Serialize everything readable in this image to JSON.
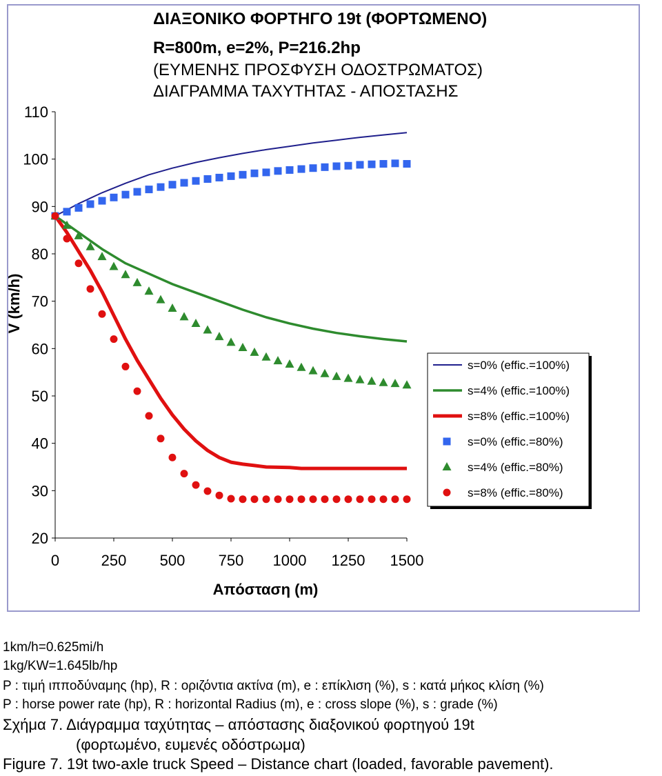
{
  "chart_data": {
    "type": "line",
    "title_lines": [
      "ΔΙΑΞΟΝΙΚΟ ΦΟΡΤΗΓΟ 19t (ΦΟΡΤΩΜΕΝΟ)",
      "R=800m, e=2%, P=216.2hp",
      "(ΕΥΜΕΝΗΣ ΠΡΟΣΦΥΣΗ ΟΔΟΣΤΡΩΜΑΤΟΣ)",
      "ΔΙΑΓΡΑΜΜΑ ΤΑΧΥΤΗΤΑΣ - ΑΠΟΣΤΑΣΗΣ"
    ],
    "xlabel": "Απόσταση (m)",
    "ylabel": "V (km/h)",
    "xlim": [
      0,
      1500
    ],
    "ylim": [
      20,
      110
    ],
    "xticks": [
      "0",
      "250",
      "500",
      "750",
      "1000",
      "1250",
      "1500"
    ],
    "yticks": [
      "20",
      "30",
      "40",
      "50",
      "60",
      "70",
      "80",
      "90",
      "100",
      "110"
    ],
    "legend_position": "right",
    "series": [
      {
        "name": "s=0% (effic.=100%)",
        "style": "line",
        "color": "#1f1f8c",
        "x": [
          0,
          100,
          200,
          300,
          400,
          500,
          600,
          700,
          800,
          900,
          1000,
          1100,
          1200,
          1300,
          1400,
          1500
        ],
        "y": [
          88,
          90.6,
          92.9,
          94.9,
          96.7,
          98.1,
          99.3,
          100.3,
          101.2,
          102,
          102.7,
          103.4,
          104,
          104.6,
          105.1,
          105.6
        ]
      },
      {
        "name": "s=4% (effic.=100%)",
        "style": "line",
        "color": "#2e8b2e",
        "x": [
          0,
          100,
          200,
          300,
          400,
          500,
          600,
          700,
          800,
          900,
          1000,
          1100,
          1200,
          1300,
          1400,
          1500
        ],
        "y": [
          88,
          84.5,
          81,
          78,
          75.8,
          73.6,
          71.8,
          70,
          68.2,
          66.6,
          65.3,
          64.2,
          63.3,
          62.6,
          62,
          61.5
        ]
      },
      {
        "name": "s=8% (effic.=100%)",
        "style": "line",
        "color": "#e01010",
        "x": [
          0,
          50,
          100,
          150,
          200,
          250,
          300,
          350,
          400,
          450,
          500,
          550,
          600,
          650,
          700,
          750,
          800,
          850,
          900,
          1000,
          1050,
          1100,
          1200,
          1300,
          1400,
          1500
        ],
        "y": [
          88,
          84.5,
          80.5,
          76.5,
          72,
          67,
          62,
          57.5,
          53.5,
          49.5,
          46,
          43,
          40.5,
          38.5,
          37,
          36,
          35.6,
          35.3,
          35,
          34.9,
          34.7,
          34.7,
          34.7,
          34.7,
          34.7,
          34.7
        ]
      },
      {
        "name": "s=0% (effic.=80%)",
        "style": "square",
        "color": "#3366ee",
        "x": [
          0,
          50,
          100,
          150,
          200,
          250,
          300,
          350,
          400,
          450,
          500,
          550,
          600,
          650,
          700,
          750,
          800,
          850,
          900,
          950,
          1000,
          1050,
          1100,
          1150,
          1200,
          1250,
          1300,
          1350,
          1400,
          1450,
          1500
        ],
        "y": [
          88,
          88.9,
          89.7,
          90.5,
          91.2,
          91.9,
          92.5,
          93.1,
          93.6,
          94.1,
          94.6,
          95,
          95.4,
          95.8,
          96.1,
          96.4,
          96.7,
          97,
          97.2,
          97.5,
          97.7,
          97.9,
          98.1,
          98.3,
          98.5,
          98.6,
          98.8,
          98.9,
          99,
          99.1,
          99
        ]
      },
      {
        "name": "s=4% (effic.=80%)",
        "style": "triangle",
        "color": "#2e8b2e",
        "x": [
          0,
          50,
          100,
          150,
          200,
          250,
          300,
          350,
          400,
          450,
          500,
          550,
          600,
          650,
          700,
          750,
          800,
          850,
          900,
          950,
          1000,
          1050,
          1100,
          1150,
          1200,
          1250,
          1300,
          1350,
          1400,
          1450,
          1500
        ],
        "y": [
          88,
          86,
          83.8,
          81.5,
          79.4,
          77.3,
          75.6,
          73.9,
          72.1,
          70.3,
          68.5,
          66.7,
          65.3,
          63.9,
          62.5,
          61.3,
          60.2,
          59.2,
          58.2,
          57.4,
          56.7,
          56,
          55.3,
          54.7,
          54.1,
          53.7,
          53.4,
          53.1,
          52.8,
          52.6,
          52.3
        ]
      },
      {
        "name": "s=8% (effic.=80%)",
        "style": "circle",
        "color": "#e01010",
        "x": [
          0,
          50,
          100,
          150,
          200,
          250,
          300,
          350,
          400,
          450,
          500,
          550,
          600,
          650,
          700,
          750,
          800,
          850,
          900,
          950,
          1000,
          1050,
          1100,
          1150,
          1200,
          1250,
          1300,
          1350,
          1400,
          1450,
          1500
        ],
        "y": [
          88,
          83.2,
          78,
          72.6,
          67.3,
          62,
          56.2,
          51,
          45.8,
          41,
          37,
          33.6,
          31.2,
          29.9,
          29,
          28.3,
          28.2,
          28.2,
          28.2,
          28.2,
          28.2,
          28.2,
          28.2,
          28.2,
          28.2,
          28.2,
          28.2,
          28.2,
          28.2,
          28.2,
          28.2
        ]
      }
    ]
  },
  "notes": {
    "conversion_speed": "1km/h=0.625mi/h",
    "conversion_weight": "1kg/KW=1.645lb/hp",
    "legend_gr": "P : τιμή ιπποδύναμης (hp), R : οριζόντια ακτίνα (m), e : επίκλιση (%), s : κατά μήκος κλίση (%)",
    "legend_en": "P : horse power rate (hp), R : horizontal Radius (m), e : cross slope (%), s : grade (%)",
    "figure_gr_1": "Σχήμα 7. Διάγραμμα ταχύτητας – απόστασης διαξονικού φορτηγού 19t",
    "figure_gr_2": "(φορτωμένο, ευμενές οδόστρωμα)",
    "figure_en": "Figure 7. 19t two-axle truck Speed – Distance chart (loaded, favorable pavement)."
  }
}
